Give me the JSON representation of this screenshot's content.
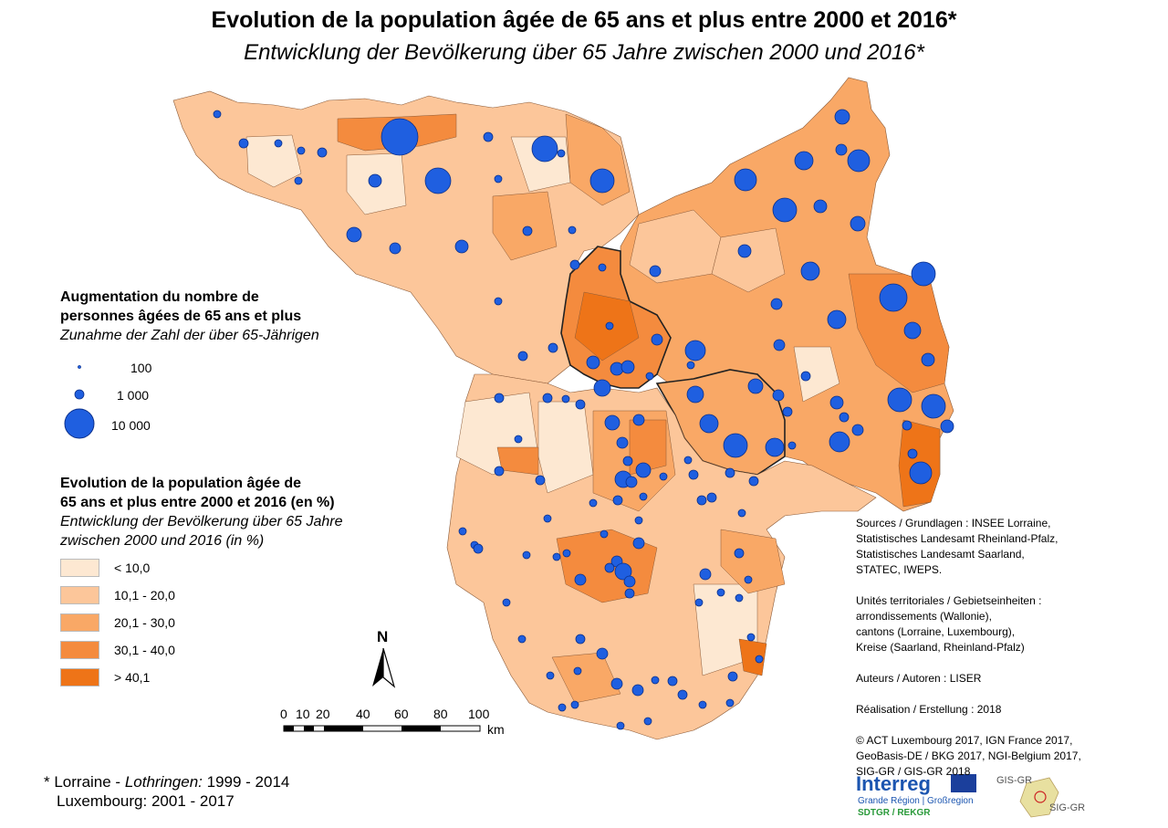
{
  "title_fr": "Evolution de la population âgée de 65 ans et plus entre 2000 et 2016*",
  "title_de": "Entwicklung der Bevölkerung über 65 Jahre zwischen 2000 und 2016*",
  "legend_prop": {
    "title_fr_1": "Augmentation du nombre de",
    "title_fr_2": "personnes âgées de 65 ans et plus",
    "title_de": "Zunahme der Zahl der über 65-Jährigen",
    "items": [
      {
        "label": "100",
        "value": 100
      },
      {
        "label": "1 000",
        "value": 1000
      },
      {
        "label": "10 000",
        "value": 10000
      }
    ],
    "circle_color": "#1f5fe0"
  },
  "legend_choro": {
    "title_fr_1": "Evolution de la population âgée de",
    "title_fr_2": "65 ans et plus entre 2000 et 2016 (en %)",
    "title_de_1": "Entwicklung der Bevölkerung über 65 Jahre",
    "title_de_2": "zwischen 2000 und 2016 (in %)",
    "classes": [
      {
        "label": "< 10,0",
        "color": "#fde8d2"
      },
      {
        "label": "10,1 - 20,0",
        "color": "#fcc69a"
      },
      {
        "label": "20,1 - 30,0",
        "color": "#f9a866"
      },
      {
        "label": "30,1 - 40,0",
        "color": "#f48b3e"
      },
      {
        "label": "> 40,1",
        "color": "#ee7418"
      }
    ]
  },
  "north_label": "N",
  "scale": {
    "ticks": [
      "0",
      "10",
      "20",
      "40",
      "60",
      "80",
      "100"
    ],
    "unit": "km"
  },
  "sources": [
    "Sources / Grundlagen : INSEE Lorraine,",
    "Statistisches Landesamt Rheinland-Pfalz,",
    "Statistisches Landesamt Saarland,",
    "STATEC, IWEPS.",
    "",
    "Unités territoriales / Gebietseinheiten :",
    "arrondissements (Wallonie),",
    "cantons (Lorraine, Luxembourg),",
    "Kreise (Saarland, Rheinland-Pfalz)",
    "",
    "Auteurs / Autoren : LISER",
    "",
    "Réalisation / Erstellung : 2018",
    "",
    "© ACT Luxembourg 2017, IGN France 2017,",
    "GeoBasis-DE / BKG 2017, NGI-Belgium 2017,",
    "SIG-GR / GIS-GR 2018"
  ],
  "footnote": {
    "line1_prefix": "* Lorraine - ",
    "line1_italic": "Lothringen:",
    "line1_suffix": " 1999 - 2014",
    "line2": "Luxembourg: 2001 - 2017"
  },
  "logos": {
    "interreg": "Interreg",
    "interreg_sub": "Grande Région | Großregion",
    "interreg_sub2": "SDTGR / REKGR",
    "gis_top": "GIS-GR",
    "gis_bottom": "SIG-GR"
  },
  "colors": {
    "circle": "#1f5fe0",
    "circle_stroke": "#0b2f8a",
    "border": "#222222"
  }
}
